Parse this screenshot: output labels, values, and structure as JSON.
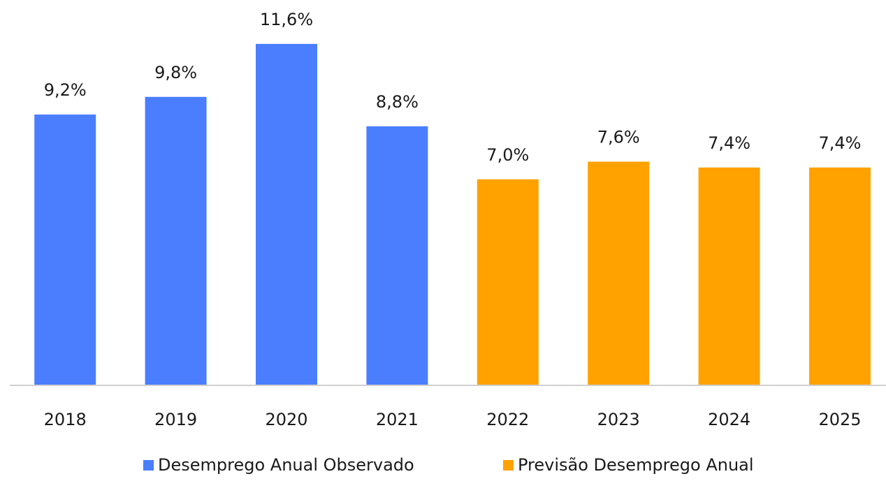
{
  "chart_data": {
    "type": "bar",
    "categories": [
      "2018",
      "2019",
      "2020",
      "2021",
      "2022",
      "2023",
      "2024",
      "2025"
    ],
    "series": [
      {
        "name": "Desemprego Anual Observado",
        "color": "#4a7efe",
        "values": [
          9.2,
          9.8,
          11.6,
          8.8,
          null,
          null,
          null,
          null
        ],
        "value_labels": [
          "9,2%",
          "9,8%",
          "11,6%",
          "8,8%",
          null,
          null,
          null,
          null
        ]
      },
      {
        "name": "Previsão Desemprego Anual",
        "color": "#ffa200",
        "values": [
          null,
          null,
          null,
          null,
          7.0,
          7.6,
          7.4,
          7.4
        ],
        "value_labels": [
          null,
          null,
          null,
          null,
          "7,0%",
          "7,6%",
          "7,4%",
          "7,4%"
        ]
      }
    ],
    "ylim": [
      0,
      12
    ],
    "legend": "bottom"
  }
}
